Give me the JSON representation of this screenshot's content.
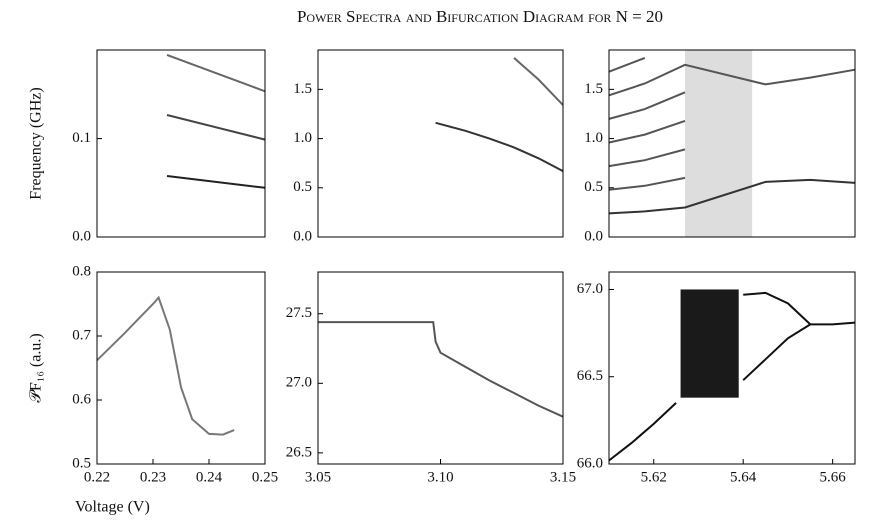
{
  "title": "Power Spectra and Bifurcation Diagram for N = 20",
  "chart_data": [
    {
      "type": "line",
      "ylabel": "Frequency (GHz)",
      "xlim": [
        0.22,
        0.25
      ],
      "ylim": [
        0,
        0.19
      ],
      "yticks": [
        {
          "value": 0,
          "label": "0.0"
        },
        0.1
      ],
      "x": [
        0.2325,
        0.25
      ],
      "series": [
        {
          "color": "#222222",
          "values": [
            0.062,
            0.05
          ]
        },
        {
          "color": "#444444",
          "values": [
            0.124,
            0.099
          ]
        },
        {
          "color": "#666666",
          "values": [
            0.185,
            0.148
          ]
        }
      ]
    },
    {
      "type": "line",
      "xlim": [
        3.05,
        3.15
      ],
      "ylim": [
        0,
        1.9
      ],
      "yticks": [
        {
          "value": 0,
          "label": "0.0"
        },
        0.5,
        {
          "value": 1,
          "label": "1.0"
        },
        1.5
      ],
      "x": [
        3.098,
        3.11,
        3.12,
        3.13,
        3.14,
        3.15
      ],
      "series": [
        {
          "color": "#333333",
          "values": [
            1.16,
            1.08,
            1.0,
            0.91,
            0.8,
            0.67
          ]
        },
        {
          "color": "#666666",
          "values": [
            null,
            null,
            null,
            1.82,
            1.6,
            1.34
          ]
        }
      ]
    },
    {
      "type": "line",
      "xlim": [
        5.61,
        5.665
      ],
      "ylim": [
        0,
        1.9
      ],
      "band": [
        5.627,
        5.642
      ],
      "yticks": [
        {
          "value": 0,
          "label": "0.0"
        },
        0.5,
        {
          "value": 1,
          "label": "1.0"
        },
        1.5
      ],
      "x": [
        5.61,
        5.618,
        5.627,
        5.645,
        5.655,
        5.665
      ],
      "series": [
        {
          "color": "#333333",
          "values": [
            0.24,
            0.26,
            0.3,
            0.56,
            0.58,
            0.55
          ]
        },
        {
          "color": "#555555",
          "values": [
            0.48,
            0.52,
            0.6,
            null,
            null,
            null
          ]
        },
        {
          "color": "#555555",
          "values": [
            0.72,
            0.78,
            0.89,
            null,
            null,
            null
          ]
        },
        {
          "color": "#555555",
          "values": [
            0.96,
            1.04,
            1.18,
            null,
            null,
            null
          ]
        },
        {
          "color": "#555555",
          "values": [
            1.2,
            1.3,
            1.47,
            null,
            null,
            null
          ]
        },
        {
          "color": "#555555",
          "values": [
            1.44,
            1.56,
            1.75,
            1.55,
            1.62,
            1.7
          ]
        },
        {
          "color": "#555555",
          "values": [
            1.68,
            1.82,
            null,
            null,
            null,
            null
          ]
        }
      ]
    },
    {
      "type": "line",
      "ylabel": "𝒫F₁₆ (a.u.)",
      "xlabel": "Voltage (V)",
      "xlim": [
        0.22,
        0.25
      ],
      "ylim": [
        0.5,
        0.8
      ],
      "xticks": [
        0.22,
        0.23,
        0.24,
        0.25
      ],
      "yticks": [
        0.5,
        0.6,
        0.7,
        0.8
      ],
      "x": [
        0.22,
        0.225,
        0.23,
        0.231,
        0.233,
        0.235,
        0.237,
        0.24,
        0.2425,
        0.2445
      ],
      "series": [
        {
          "color": "#777777",
          "values": [
            0.662,
            0.705,
            0.75,
            0.76,
            0.71,
            0.62,
            0.57,
            0.547,
            0.546,
            0.553
          ]
        }
      ]
    },
    {
      "type": "line",
      "xlim": [
        3.05,
        3.15
      ],
      "ylim": [
        26.42,
        27.8
      ],
      "xticks": [
        3.05,
        {
          "value": 3.1,
          "label": "3.10"
        },
        3.15
      ],
      "yticks": [
        26.5,
        {
          "value": 27,
          "label": "27.0"
        },
        27.5
      ],
      "x": [
        3.05,
        3.097,
        3.098,
        3.1,
        3.11,
        3.12,
        3.13,
        3.14,
        3.15
      ],
      "series": [
        {
          "color": "#555555",
          "values": [
            27.44,
            27.44,
            27.3,
            27.22,
            27.12,
            27.02,
            26.93,
            26.84,
            26.76
          ]
        }
      ]
    },
    {
      "type": "line",
      "xlim": [
        5.61,
        5.665
      ],
      "ylim": [
        66.0,
        67.1
      ],
      "xticks": [
        5.62,
        5.64,
        5.66
      ],
      "yticks": [
        {
          "value": 66,
          "label": "66.0"
        },
        66.5,
        {
          "value": 67,
          "label": "67.0"
        }
      ],
      "band": [
        5.626,
        5.639
      ],
      "band_y": [
        66.38,
        67.0
      ],
      "x": [
        5.61,
        5.615,
        5.62,
        5.625,
        5.64,
        5.645,
        5.65,
        5.655,
        5.66,
        5.665
      ],
      "series": [
        {
          "color": "#111111",
          "values": [
            66.02,
            66.12,
            66.23,
            66.35,
            null,
            null,
            null,
            null,
            null,
            null
          ]
        },
        {
          "color": "#111111",
          "values": [
            null,
            null,
            null,
            null,
            66.97,
            66.98,
            66.92,
            66.8,
            66.8,
            66.81
          ]
        },
        {
          "color": "#111111",
          "values": [
            null,
            null,
            null,
            null,
            66.48,
            66.6,
            66.72,
            66.8,
            null,
            null
          ]
        }
      ]
    }
  ]
}
